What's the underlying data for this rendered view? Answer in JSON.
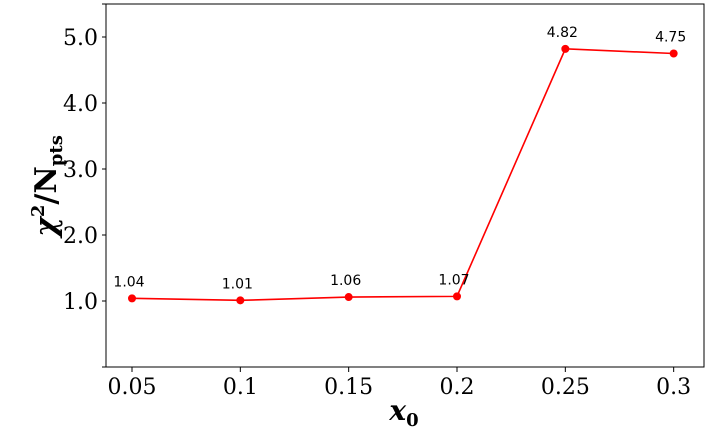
{
  "chart_data": {
    "type": "line",
    "x": [
      0.05,
      0.1,
      0.15,
      0.2,
      0.25,
      0.3
    ],
    "series": [
      {
        "values": [
          1.04,
          1.01,
          1.06,
          1.07,
          4.82,
          4.75
        ],
        "labels": [
          "1.04",
          "1.01",
          "1.06",
          "1.07",
          "4.82",
          "4.75"
        ],
        "color": "#ff0000"
      }
    ],
    "x_tick_labels": [
      "0.05",
      "0.1",
      "0.15",
      "0.2",
      "0.25",
      "0.3"
    ],
    "y_ticks": [
      0,
      1,
      2,
      3,
      4,
      5,
      5.5
    ],
    "y_tick_labels": [
      "",
      "1.0",
      "2.0",
      "3.0",
      "4.0",
      "5.0",
      ""
    ],
    "ylabel": {
      "base": "χ",
      "sup": "2",
      "sep": "/N",
      "sub": "pts"
    },
    "xlabel": {
      "base": "x",
      "sub": "0"
    },
    "xlim": [
      0.038,
      0.314
    ],
    "ylim": [
      0,
      5.5
    ],
    "grid": false,
    "title": ""
  }
}
